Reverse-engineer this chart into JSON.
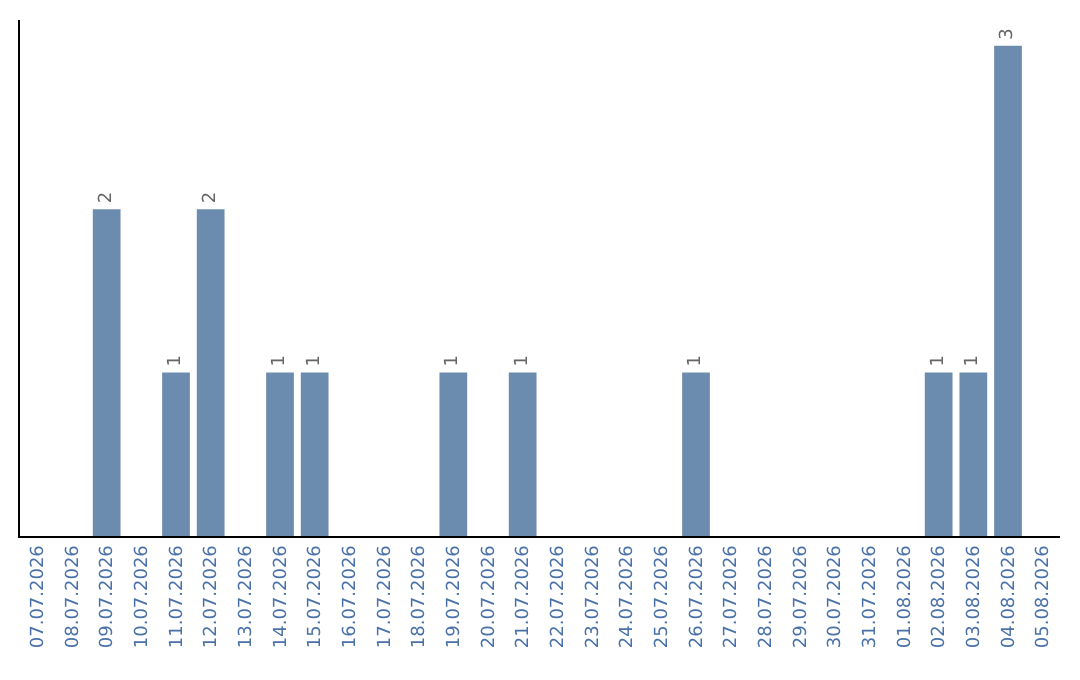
{
  "chart_data": {
    "type": "bar",
    "categories": [
      "07.07.2026",
      "08.07.2026",
      "09.07.2026",
      "10.07.2026",
      "11.07.2026",
      "12.07.2026",
      "13.07.2026",
      "14.07.2026",
      "15.07.2026",
      "16.07.2026",
      "17.07.2026",
      "18.07.2026",
      "19.07.2026",
      "20.07.2026",
      "21.07.2026",
      "22.07.2026",
      "23.07.2026",
      "24.07.2026",
      "25.07.2026",
      "26.07.2026",
      "27.07.2026",
      "28.07.2026",
      "29.07.2026",
      "30.07.2026",
      "31.07.2026",
      "01.08.2026",
      "02.08.2026",
      "03.08.2026",
      "04.08.2026",
      "05.08.2026"
    ],
    "values": [
      null,
      null,
      2,
      null,
      1,
      2,
      null,
      1,
      1,
      null,
      null,
      null,
      1,
      null,
      1,
      null,
      null,
      null,
      null,
      1,
      null,
      null,
      null,
      null,
      null,
      null,
      1,
      1,
      3,
      null
    ],
    "value_labels": [
      null,
      null,
      "2",
      null,
      "1",
      "2",
      null,
      "1",
      "1",
      null,
      null,
      null,
      "1",
      null,
      "1",
      null,
      null,
      null,
      null,
      "1",
      null,
      null,
      null,
      null,
      null,
      null,
      "1",
      "1",
      "3",
      null
    ],
    "color": "#6b8cae",
    "tick_labels": "x"
  }
}
